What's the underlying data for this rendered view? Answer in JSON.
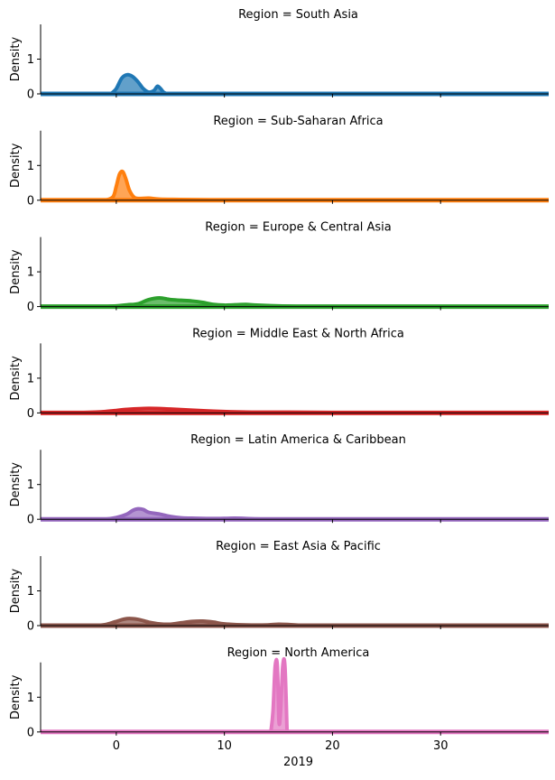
{
  "chart_data": {
    "type": "area",
    "xlabel": "2019",
    "ylabel": "Density",
    "xlim": [
      -7,
      40
    ],
    "ylim": [
      0,
      2
    ],
    "xticks": [
      0,
      10,
      20,
      30
    ],
    "yticks": [
      0,
      1
    ],
    "grid": false,
    "panels": [
      {
        "title": "Region = South Asia",
        "color": "#1f77b4",
        "x": [
          -0.5,
          0,
          0.5,
          1,
          1.5,
          2,
          2.5,
          3,
          3.5,
          3.8,
          4.1,
          4.4,
          4.8,
          5.5
        ],
        "y": [
          0,
          0.15,
          0.45,
          0.55,
          0.5,
          0.35,
          0.15,
          0.05,
          0.1,
          0.22,
          0.15,
          0.04,
          0,
          0
        ]
      },
      {
        "title": "Region = Sub-Saharan Africa",
        "color": "#ff7f0e",
        "x": [
          -1,
          -0.3,
          0,
          0.3,
          0.6,
          0.9,
          1.2,
          1.6,
          2,
          3,
          4,
          6,
          8,
          10
        ],
        "y": [
          0,
          0.1,
          0.4,
          0.75,
          0.82,
          0.6,
          0.3,
          0.1,
          0.05,
          0.06,
          0.03,
          0.02,
          0.01,
          0
        ]
      },
      {
        "title": "Region = Europe & Central Asia",
        "color": "#2ca02c",
        "x": [
          -1,
          0,
          1,
          2,
          3,
          4,
          5,
          6,
          7,
          8,
          9,
          10,
          11,
          12,
          13,
          15,
          17
        ],
        "y": [
          0,
          0.02,
          0.05,
          0.08,
          0.2,
          0.25,
          0.2,
          0.18,
          0.16,
          0.12,
          0.06,
          0.04,
          0.05,
          0.06,
          0.04,
          0.02,
          0
        ]
      },
      {
        "title": "Region = Middle East & North Africa",
        "color": "#d62728",
        "x": [
          -5,
          -3,
          -1,
          1,
          3,
          5,
          7,
          9,
          11,
          13,
          16,
          20,
          25,
          30,
          35,
          38
        ],
        "y": [
          0,
          0.01,
          0.04,
          0.1,
          0.13,
          0.11,
          0.08,
          0.05,
          0.03,
          0.02,
          0.02,
          0.01,
          0.01,
          0.01,
          0.01,
          0
        ]
      },
      {
        "title": "Region = Latin America & Caribbean",
        "color": "#9467bd",
        "x": [
          -1,
          0,
          1,
          1.5,
          2,
          2.5,
          3,
          4,
          5,
          6,
          7,
          9,
          11,
          13,
          14
        ],
        "y": [
          0,
          0.05,
          0.15,
          0.25,
          0.3,
          0.28,
          0.2,
          0.15,
          0.08,
          0.04,
          0.03,
          0.02,
          0.03,
          0.01,
          0
        ]
      },
      {
        "title": "Region = East Asia & Pacific",
        "color": "#8c564b",
        "x": [
          -2,
          -1,
          0,
          1,
          2,
          3,
          4,
          5,
          6,
          7,
          8,
          9,
          10,
          12,
          14,
          15,
          16,
          17,
          19
        ],
        "y": [
          0,
          0.03,
          0.12,
          0.2,
          0.18,
          0.1,
          0.05,
          0.04,
          0.08,
          0.12,
          0.13,
          0.1,
          0.05,
          0.02,
          0.02,
          0.04,
          0.03,
          0.01,
          0
        ]
      },
      {
        "title": "Region = North America",
        "color": "#e377c2",
        "x": [
          14.3,
          14.5,
          14.7,
          14.9,
          15.05,
          15.2,
          15.4,
          15.6,
          15.8
        ],
        "y": [
          0,
          0.6,
          1.9,
          1.9,
          0.3,
          0.6,
          1.9,
          1.9,
          0
        ]
      }
    ]
  }
}
